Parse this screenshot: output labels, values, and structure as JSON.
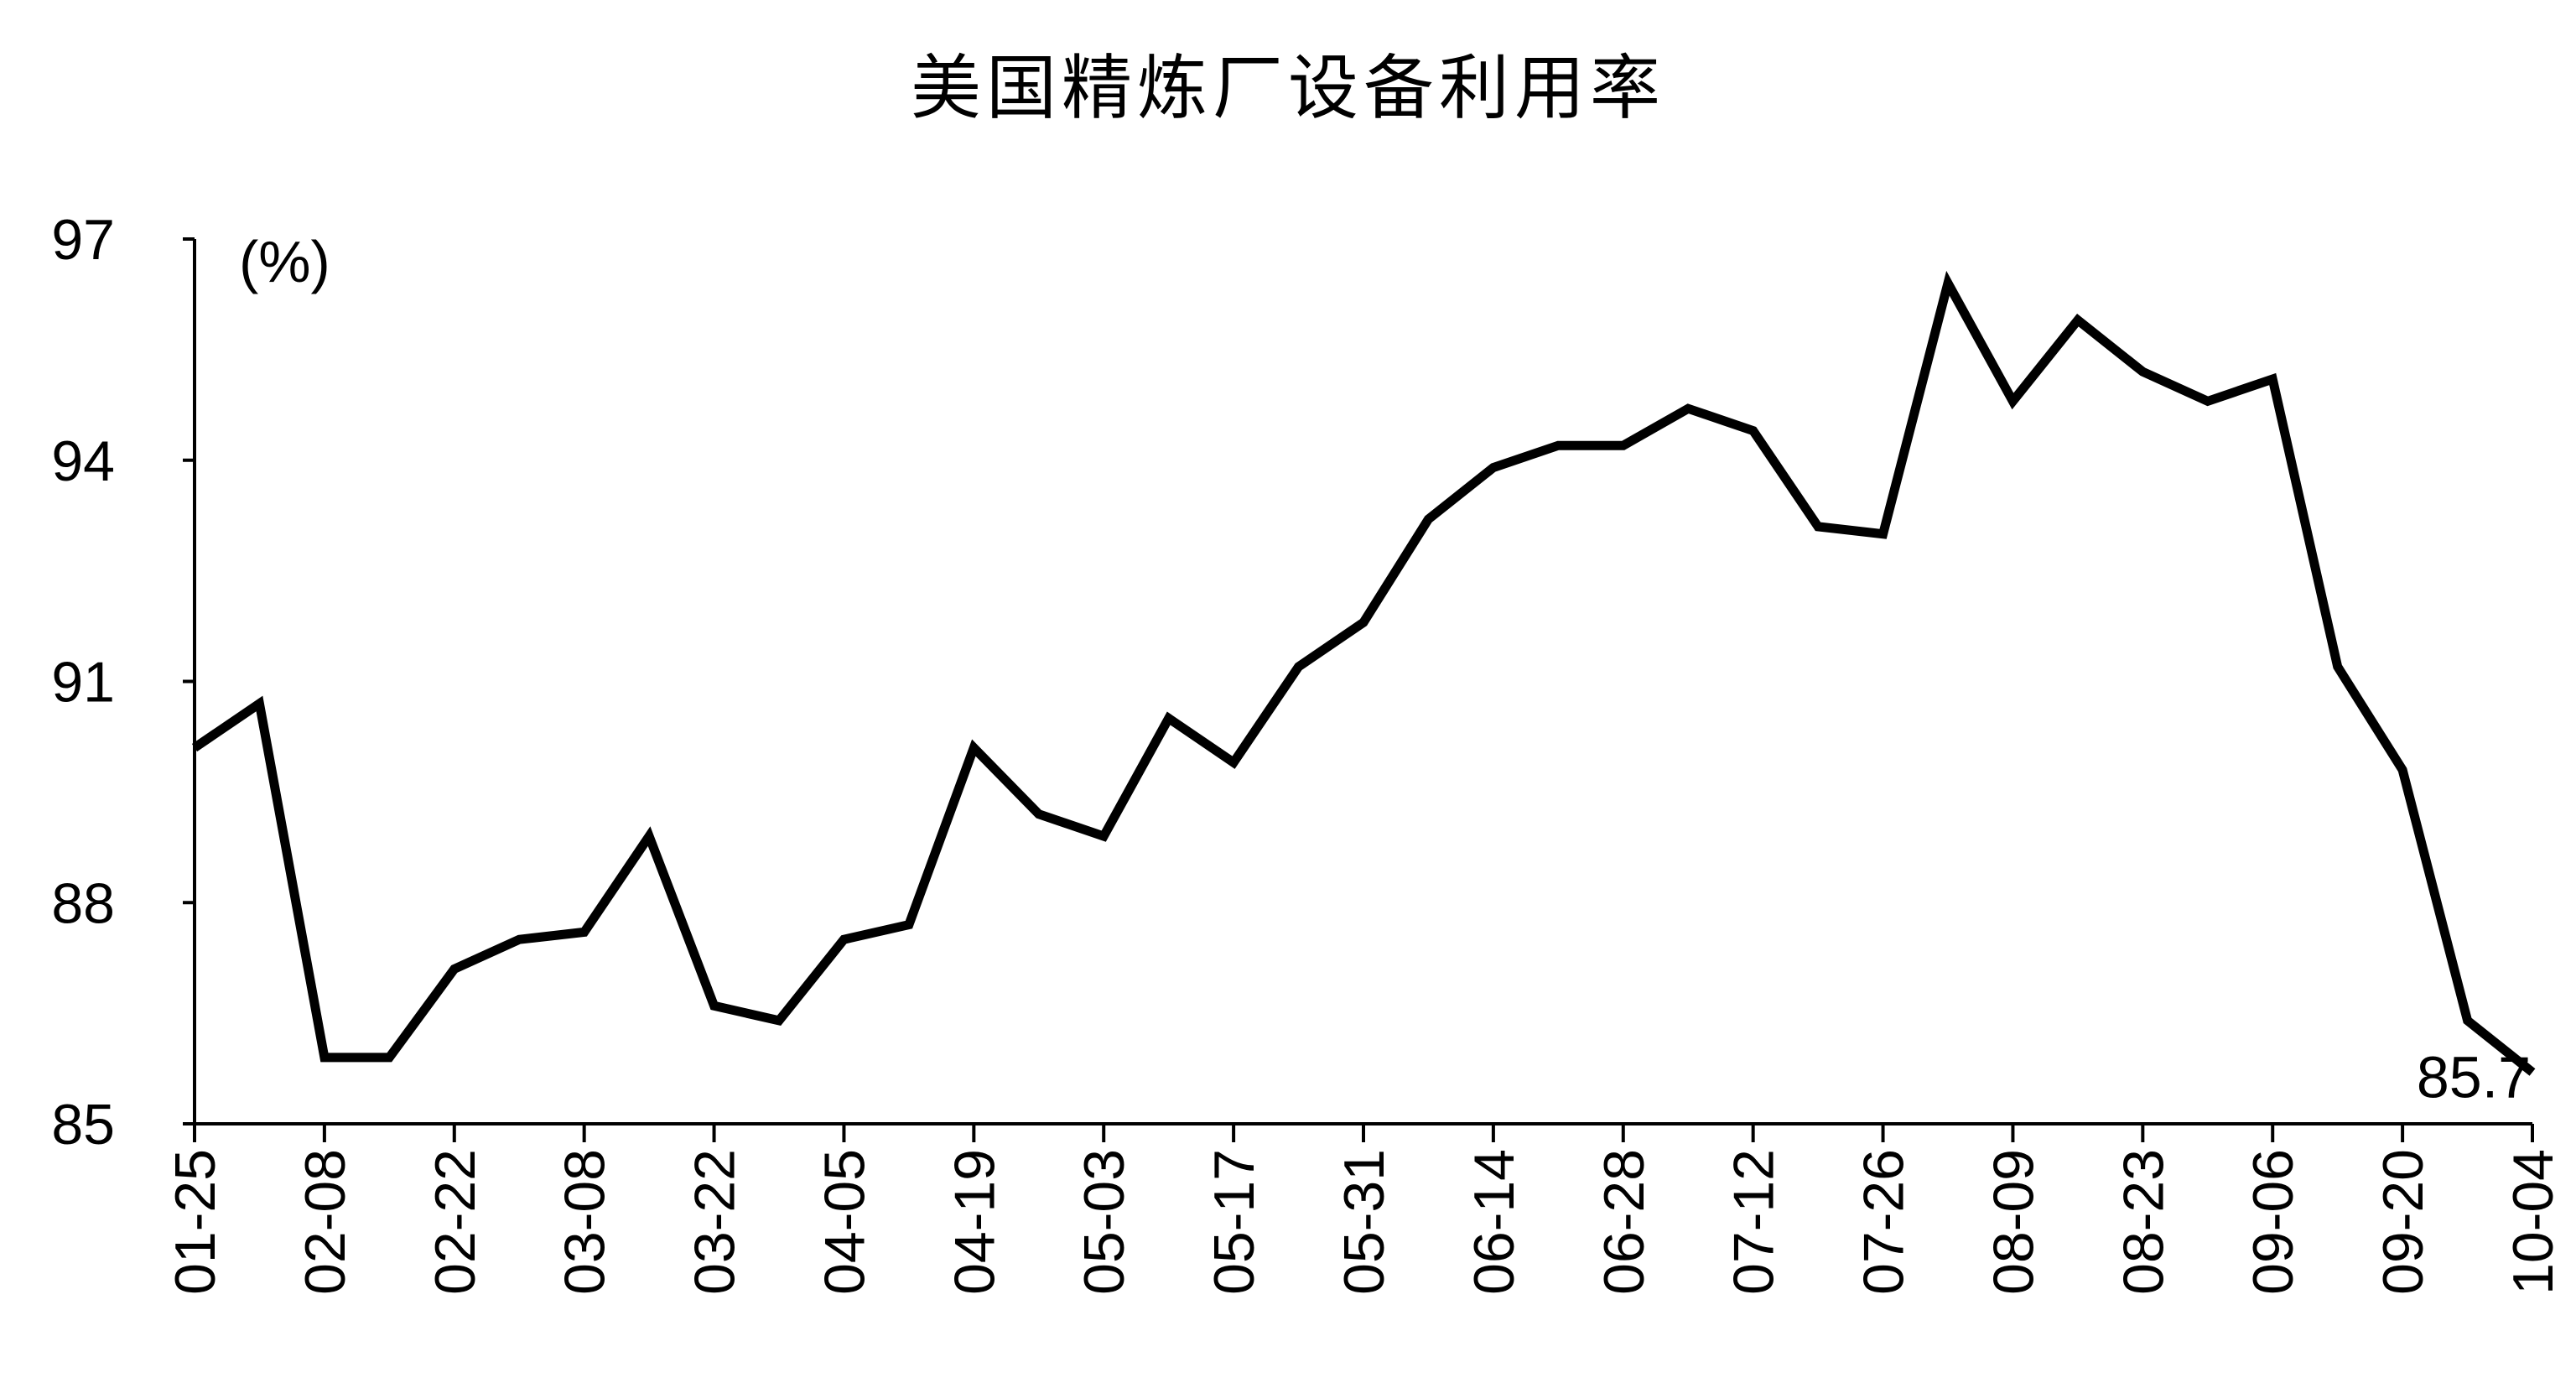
{
  "chart_data": {
    "type": "line",
    "title": "美国精炼厂设备利用率",
    "unit_label": "(%)",
    "xlabel": "",
    "ylabel": "",
    "ylim": [
      85,
      97
    ],
    "yticks": [
      85,
      88,
      91,
      94,
      97
    ],
    "x": [
      "01-25",
      "02-01",
      "02-08",
      "02-15",
      "02-22",
      "03-01",
      "03-08",
      "03-15",
      "03-22",
      "03-29",
      "04-05",
      "04-12",
      "04-19",
      "04-26",
      "05-03",
      "05-10",
      "05-17",
      "05-24",
      "05-31",
      "06-07",
      "06-14",
      "06-21",
      "06-28",
      "07-05",
      "07-12",
      "07-19",
      "07-26",
      "08-02",
      "08-09",
      "08-16",
      "08-23",
      "08-30",
      "09-06",
      "09-13",
      "09-20",
      "09-27",
      "10-04"
    ],
    "xtick_labels": [
      "01-25",
      "02-08",
      "02-22",
      "03-08",
      "03-22",
      "04-05",
      "04-19",
      "05-03",
      "05-17",
      "05-31",
      "06-14",
      "06-28",
      "07-12",
      "07-26",
      "08-09",
      "08-23",
      "09-06",
      "09-20",
      "10-04"
    ],
    "series": [
      {
        "values": [
          90.1,
          90.7,
          85.9,
          85.9,
          87.1,
          87.5,
          87.6,
          88.9,
          86.6,
          86.4,
          87.5,
          87.7,
          90.1,
          89.2,
          88.9,
          90.5,
          89.9,
          91.2,
          91.8,
          93.2,
          93.9,
          94.2,
          94.2,
          94.7,
          94.4,
          93.1,
          93.0,
          96.4,
          94.8,
          95.9,
          95.2,
          94.8,
          95.1,
          91.2,
          89.8,
          86.4,
          85.7
        ],
        "color": "#000000"
      }
    ],
    "last_value_label": "85.7",
    "grid": false,
    "legend": "none"
  }
}
